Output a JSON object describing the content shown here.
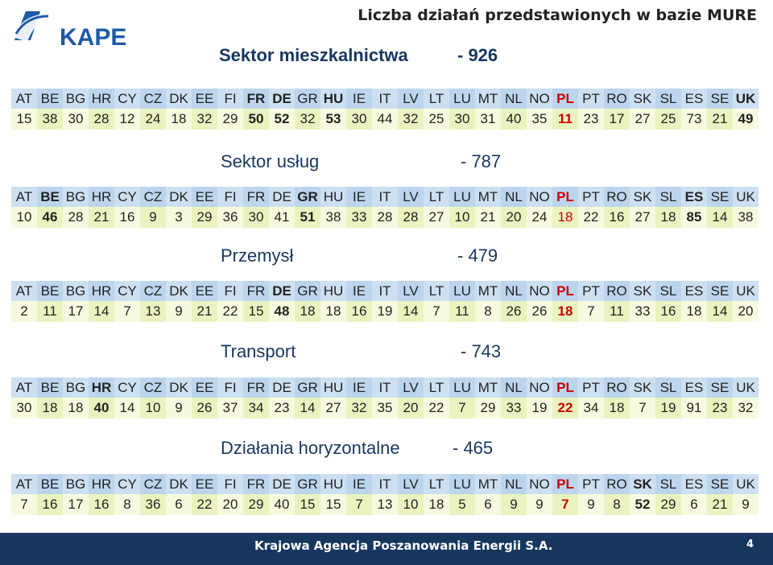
{
  "logo": {
    "text": "KAPE"
  },
  "header": {
    "title": "Liczba działań przedstawionych w bazie MURE"
  },
  "countries": [
    "AT",
    "BE",
    "BG",
    "HR",
    "CY",
    "CZ",
    "DK",
    "EE",
    "FI",
    "FR",
    "DE",
    "GR",
    "HU",
    "IE",
    "IT",
    "LV",
    "LT",
    "LU",
    "MT",
    "NL",
    "NO",
    "PL",
    "PT",
    "RO",
    "SK",
    "SL",
    "ES",
    "SE",
    "UK"
  ],
  "sections": [
    {
      "title": "Sektor mieszkalnictwa",
      "count": "- 926",
      "values": [
        "15",
        "38",
        "30",
        "28",
        "12",
        "24",
        "18",
        "32",
        "29",
        "50",
        "52",
        "32",
        "53",
        "30",
        "44",
        "32",
        "25",
        "30",
        "31",
        "40",
        "35",
        "11",
        "23",
        "17",
        "27",
        "25",
        "73",
        "21",
        "49"
      ],
      "bold_countries": [
        "FR",
        "DE",
        "HU",
        "UK"
      ],
      "bold_values": [
        "FR",
        "DE",
        "HU",
        "UK"
      ]
    },
    {
      "title": "Sektor usług",
      "count": "- 787",
      "values": [
        "10",
        "46",
        "28",
        "21",
        "16",
        "9",
        "3",
        "29",
        "36",
        "30",
        "41",
        "51",
        "38",
        "33",
        "28",
        "28",
        "27",
        "10",
        "21",
        "20",
        "24",
        "18",
        "22",
        "16",
        "27",
        "18",
        "85",
        "14",
        "38"
      ],
      "bold_countries": [
        "BE",
        "GR",
        "ES"
      ],
      "bold_values": [
        "BE",
        "GR",
        "ES"
      ]
    },
    {
      "title": "Przemysł",
      "count": "- 479",
      "values": [
        "2",
        "11",
        "17",
        "14",
        "7",
        "13",
        "9",
        "21",
        "22",
        "15",
        "48",
        "18",
        "18",
        "16",
        "19",
        "14",
        "7",
        "11",
        "8",
        "26",
        "26",
        "18",
        "7",
        "11",
        "33",
        "16",
        "18",
        "14",
        "20"
      ],
      "bold_countries": [
        "DE"
      ],
      "bold_values": [
        "DE"
      ]
    },
    {
      "title": "Transport",
      "count": "- 743",
      "values": [
        "30",
        "18",
        "18",
        "40",
        "14",
        "10",
        "9",
        "26",
        "37",
        "34",
        "23",
        "14",
        "27",
        "32",
        "35",
        "20",
        "22",
        "7",
        "29",
        "33",
        "19",
        "22",
        "34",
        "18",
        "7",
        "19",
        "91",
        "23",
        "32"
      ],
      "bold_countries": [
        "HR"
      ],
      "bold_values": [
        "HR"
      ]
    },
    {
      "title": "Działania horyzontalne",
      "count": "- 465",
      "values": [
        "7",
        "16",
        "17",
        "16",
        "8",
        "36",
        "6",
        "22",
        "20",
        "29",
        "40",
        "15",
        "15",
        "7",
        "13",
        "10",
        "18",
        "5",
        "6",
        "9",
        "9",
        "7",
        "9",
        "8",
        "52",
        "29",
        "6",
        "21",
        "9"
      ],
      "bold_countries": [
        "SK"
      ],
      "bold_values": [
        "SK"
      ]
    }
  ],
  "footer": {
    "text": "Krajowa Agencja Poszanowania Energii S.A.",
    "page": "4"
  }
}
